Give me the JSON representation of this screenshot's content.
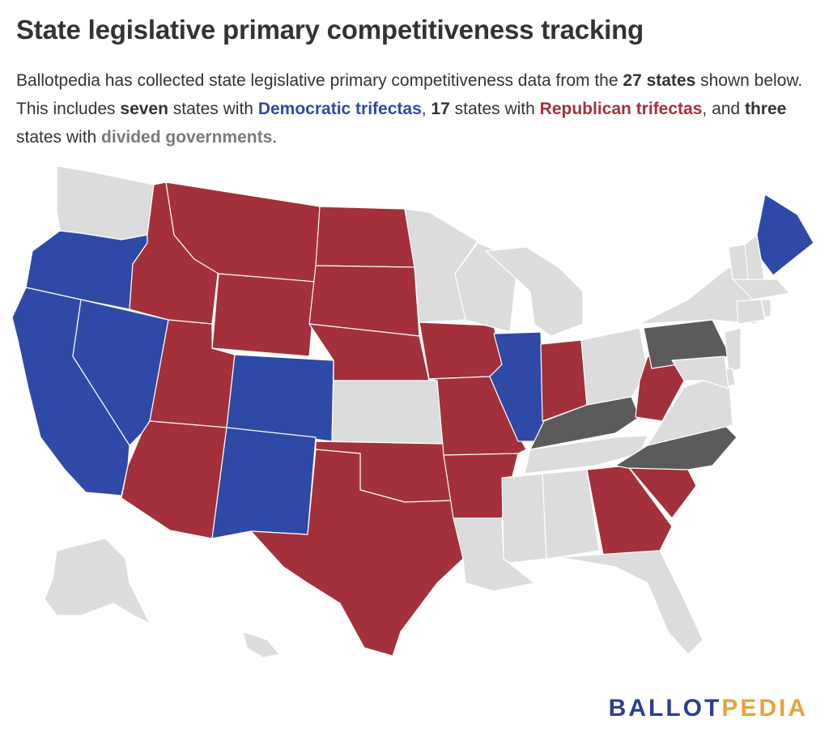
{
  "header": {
    "title": "State legislative primary competitiveness tracking",
    "subtitle": {
      "p1": "Ballotpedia has collected state legislative primary competitiveness data from the ",
      "states_count": "27 states",
      "p2": " shown below. This includes ",
      "dem_count": "seven",
      "p3": " states with ",
      "dem_label": "Democratic trifectas",
      "p4": ", ",
      "rep_count": "17",
      "p5": " states with ",
      "rep_label": "Republican trifectas",
      "p6": ", and ",
      "div_count": "three",
      "p7": " states with ",
      "div_label": "divided governments",
      "p8": "."
    }
  },
  "colors": {
    "democratic": "#2f49a6",
    "republican": "#a3303a",
    "divided": "#5b5b5b",
    "no_data": "#dcdcdc",
    "border": "#ffffff"
  },
  "map": {
    "state_status": {
      "WA": "no_data",
      "OR": "democratic",
      "CA": "democratic",
      "NV": "democratic",
      "ID": "republican",
      "MT": "republican",
      "WY": "republican",
      "UT": "republican",
      "AZ": "republican",
      "CO": "democratic",
      "NM": "democratic",
      "ND": "republican",
      "SD": "republican",
      "NE": "republican",
      "KS": "no_data",
      "OK": "republican",
      "TX": "republican",
      "MN": "no_data",
      "IA": "republican",
      "MO": "republican",
      "AR": "republican",
      "LA": "no_data",
      "WI": "no_data",
      "IL": "democratic",
      "MS": "no_data",
      "MI": "no_data",
      "IN": "republican",
      "KY": "divided",
      "TN": "no_data",
      "AL": "no_data",
      "OH": "no_data",
      "WV": "republican",
      "GA": "republican",
      "FL": "no_data",
      "SC": "republican",
      "NC": "divided",
      "VA": "no_data",
      "PA": "divided",
      "NY": "no_data",
      "ME": "democratic",
      "NH": "no_data",
      "VT": "no_data",
      "MA": "no_data",
      "CT": "no_data",
      "RI": "no_data",
      "NJ": "no_data",
      "DE": "no_data",
      "MD": "no_data",
      "AK": "no_data",
      "HI": "no_data"
    }
  },
  "brand": {
    "part1": "BALLOT",
    "part2": "PEDIA"
  }
}
